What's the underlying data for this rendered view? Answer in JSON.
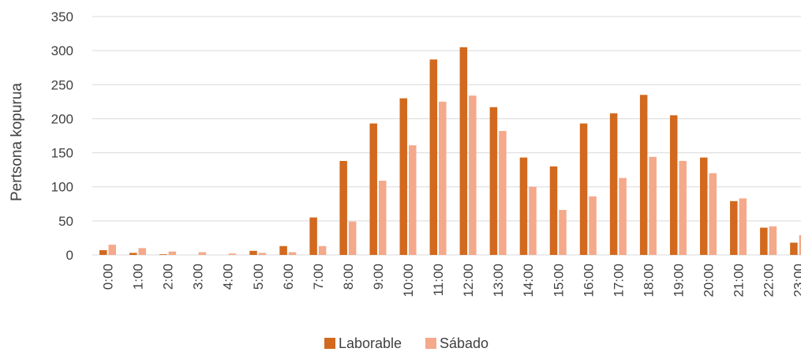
{
  "chart_data": {
    "type": "bar",
    "title": "",
    "xlabel": "",
    "ylabel": "Pertsona kopurua",
    "ylim": [
      0,
      350
    ],
    "yticks": [
      0,
      50,
      100,
      150,
      200,
      250,
      300,
      350
    ],
    "grid": true,
    "legend_position": "bottom",
    "categories": [
      "0:00",
      "1:00",
      "2:00",
      "3:00",
      "4:00",
      "5:00",
      "6:00",
      "7:00",
      "8:00",
      "9:00",
      "10:00",
      "11:00",
      "12:00",
      "13:00",
      "14:00",
      "15:00",
      "16:00",
      "17:00",
      "18:00",
      "19:00",
      "20:00",
      "21:00",
      "22:00",
      "23:00"
    ],
    "series": [
      {
        "name": "Laborable",
        "color": "#d2691e",
        "values": [
          7,
          3,
          1,
          0,
          0,
          6,
          13,
          55,
          138,
          193,
          230,
          287,
          305,
          217,
          143,
          130,
          193,
          208,
          235,
          205,
          143,
          79,
          40,
          18
        ]
      },
      {
        "name": "Sábado",
        "color": "#f4a98a",
        "values": [
          15,
          10,
          5,
          4,
          2,
          3,
          4,
          13,
          49,
          109,
          161,
          225,
          234,
          182,
          100,
          66,
          86,
          113,
          144,
          138,
          120,
          83,
          42,
          29
        ]
      }
    ]
  }
}
